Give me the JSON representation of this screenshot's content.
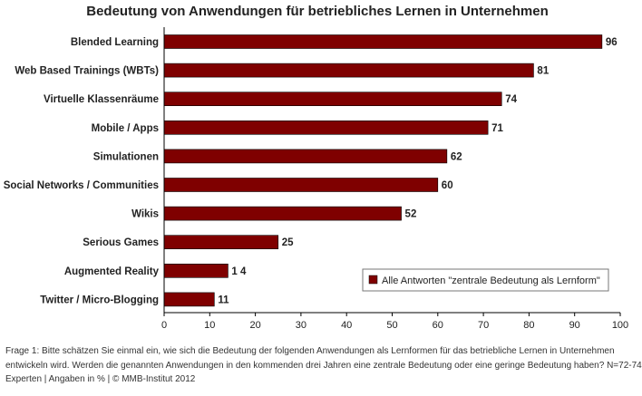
{
  "chart_data": {
    "type": "bar",
    "orientation": "horizontal",
    "title": "Bedeutung von Anwendungen für betriebliches Lernen in Unternehmen",
    "categories": [
      "Blended Learning",
      "Web Based Trainings (WBTs)",
      "Virtuelle Klassenräume",
      "Mobile / Apps",
      "Simulationen",
      "Social Networks / Communities",
      "Wikis",
      "Serious Games",
      "Augmented Reality",
      "Twitter / Micro-Blogging"
    ],
    "value_labels": [
      "96",
      "81",
      "74",
      "71",
      "62",
      "60",
      "52",
      "25",
      "1 4",
      "11"
    ],
    "series": [
      {
        "name": "Alle Antworten \"zentrale Bedeutung als Lernform\"",
        "values": [
          96,
          81,
          74,
          71,
          62,
          60,
          52,
          25,
          14,
          11
        ],
        "color": "#7f0000"
      }
    ],
    "xlim": [
      0,
      100
    ],
    "xticks": [
      0,
      10,
      20,
      30,
      40,
      50,
      60,
      70,
      80,
      90,
      100
    ],
    "grid": false,
    "legend_position": "bottom-right"
  },
  "footnote": {
    "lines": [
      "Frage 1: Bitte schätzen Sie einmal ein, wie sich die Bedeutung der folgenden Anwendungen als Lernformen für das betriebliche Lernen in Unternehmen",
      "entwickeln wird. Werden die genannten Anwendungen in den kommenden drei Jahren eine zentrale Bedeutung oder eine geringe Bedeutung haben? N=72-74",
      "Experten | Angaben in % | © MMB-Institut 2012"
    ]
  }
}
